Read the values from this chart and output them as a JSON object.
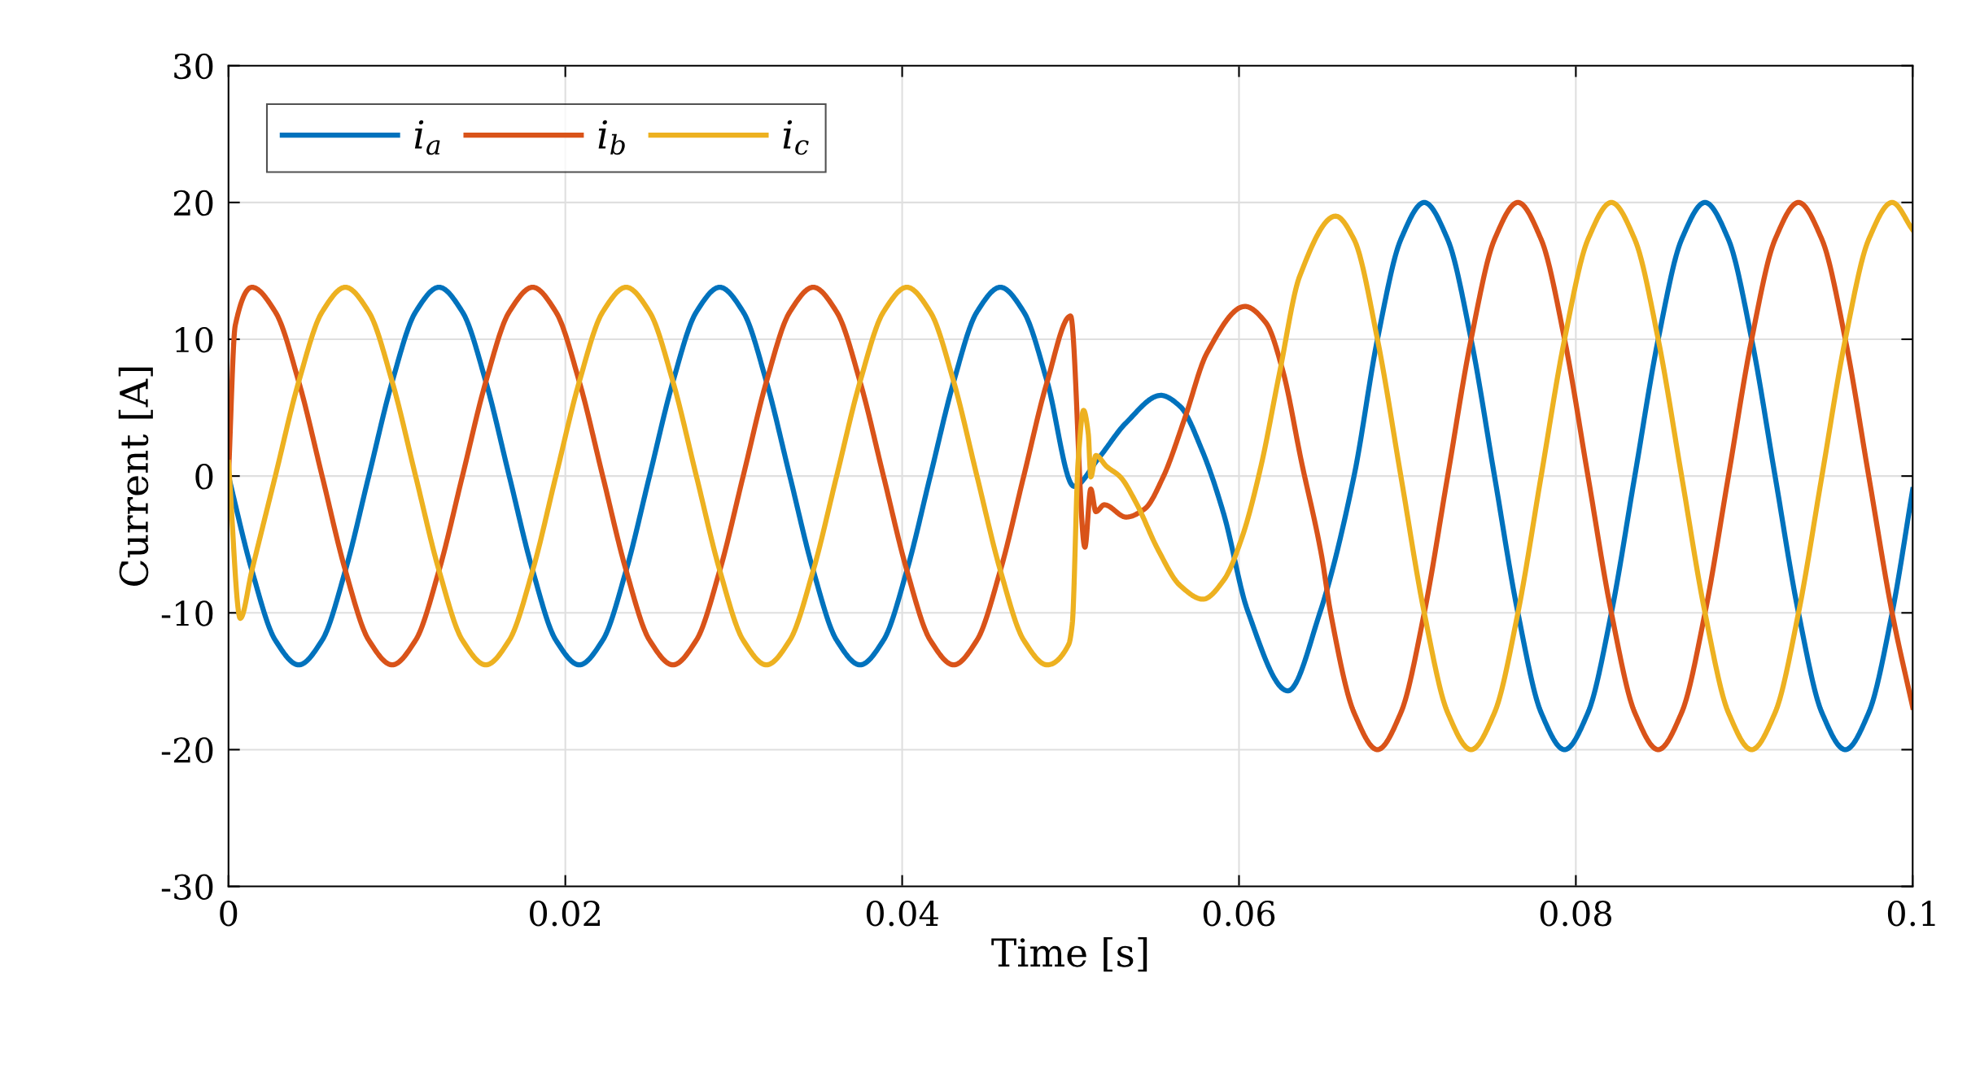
{
  "chart_data": {
    "type": "line",
    "xlabel": "Time [s]",
    "ylabel": "Current [A]",
    "xlim": [
      0,
      0.1
    ],
    "ylim": [
      -30,
      30
    ],
    "xticks": [
      0,
      0.02,
      0.04,
      0.06,
      0.08,
      0.1
    ],
    "yticks": [
      -30,
      -20,
      -10,
      0,
      10,
      20,
      30
    ],
    "grid": true,
    "legend": "top left",
    "series": [
      {
        "name": "i$_{a}$",
        "color": "#0072bd",
        "x": [
          0,
          0.00139,
          0.00278,
          0.00417,
          0.00556,
          0.00694,
          0.00833,
          0.00972,
          0.01111,
          0.0125,
          0.01389,
          0.01528,
          0.01667,
          0.01806,
          0.01944,
          0.02083,
          0.02222,
          0.02361,
          0.025,
          0.02639,
          0.02778,
          0.02917,
          0.03056,
          0.03194,
          0.03333,
          0.03472,
          0.03611,
          0.0375,
          0.03889,
          0.04028,
          0.04167,
          0.04306,
          0.04444,
          0.04583,
          0.04722,
          0.04861,
          0.0502,
          0.05166,
          0.0533,
          0.05536,
          0.0565,
          0.0578,
          0.0591,
          0.0605,
          0.0629,
          0.0648,
          0.06683,
          0.06822,
          0.06961,
          0.071,
          0.07239,
          0.07378,
          0.07517,
          0.07656,
          0.07794,
          0.07933,
          0.08072,
          0.08211,
          0.0835,
          0.08489,
          0.08628,
          0.08767,
          0.08906,
          0.09044,
          0.09183,
          0.09322,
          0.09461,
          0.096,
          0.09739,
          0.09878,
          0.1
        ],
        "values": [
          0,
          -6.9,
          -12,
          -13.8,
          -12,
          -6.9,
          0,
          6.9,
          12,
          13.8,
          12,
          6.9,
          0,
          -6.9,
          -12,
          -13.8,
          -12,
          -6.9,
          0,
          6.9,
          12,
          13.8,
          12,
          6.9,
          0,
          -6.9,
          -12,
          -13.8,
          -12,
          -6.9,
          0,
          6.9,
          12,
          13.8,
          12,
          6.9,
          -0.75,
          1.3,
          3.9,
          5.9,
          5.1,
          1.9,
          -2.8,
          -9.8,
          -15.7,
          -10,
          0,
          10,
          17.3,
          20,
          17.3,
          10,
          0,
          -10,
          -17.3,
          -20,
          -17.3,
          -10,
          0,
          10,
          17.3,
          20,
          17.3,
          10,
          0,
          -10,
          -17.3,
          -20,
          -17.3,
          -10,
          -1
        ]
      },
      {
        "name": "i$_{b}$",
        "color": "#d95319",
        "x": [
          0,
          0.0004,
          0.00139,
          0.00278,
          0.00417,
          0.00556,
          0.00694,
          0.00833,
          0.00972,
          0.01111,
          0.0125,
          0.01389,
          0.01528,
          0.01667,
          0.01806,
          0.01944,
          0.02083,
          0.02222,
          0.02361,
          0.025,
          0.02639,
          0.02778,
          0.02917,
          0.03056,
          0.03194,
          0.03333,
          0.03472,
          0.03611,
          0.0375,
          0.03889,
          0.04028,
          0.04167,
          0.04306,
          0.04444,
          0.04583,
          0.04722,
          0.04861,
          0.05,
          0.05085,
          0.0512,
          0.0515,
          0.052,
          0.0533,
          0.0544,
          0.0555,
          0.0568,
          0.0581,
          0.06035,
          0.0616,
          0.0626,
          0.0637,
          0.0649,
          0.06544,
          0.06683,
          0.06822,
          0.06961,
          0.071,
          0.07239,
          0.07378,
          0.07517,
          0.07656,
          0.07794,
          0.07933,
          0.08072,
          0.08211,
          0.0835,
          0.08489,
          0.08628,
          0.08767,
          0.08906,
          0.09044,
          0.09183,
          0.09322,
          0.09461,
          0.096,
          0.09739,
          0.09878,
          0.1
        ],
        "values": [
          0,
          11,
          13.8,
          12,
          6.9,
          0,
          -6.9,
          -12,
          -13.8,
          -12,
          -6.9,
          0,
          6.9,
          12,
          13.8,
          12,
          6.9,
          0,
          -6.9,
          -12,
          -13.8,
          -12,
          -6.9,
          0,
          6.9,
          12,
          13.8,
          12,
          6.9,
          0,
          -6.9,
          -12,
          -13.8,
          -12,
          -6.9,
          0,
          6.9,
          11.7,
          -5.2,
          -0.95,
          -2.6,
          -2.1,
          -3,
          -2.4,
          -0.06,
          4.3,
          9,
          12.4,
          11.2,
          7.7,
          1.1,
          -5.8,
          -10,
          -17.3,
          -20,
          -17.3,
          -10,
          0,
          10,
          17.3,
          20,
          17.3,
          10,
          0,
          -10,
          -17.3,
          -20,
          -17.3,
          -10,
          0,
          10,
          17.3,
          20,
          17.3,
          10,
          0,
          -10,
          -16.9
        ]
      },
      {
        "name": "i$_{c}$",
        "color": "#edb120",
        "x": [
          0,
          0.0007,
          0.00139,
          0.00278,
          0.00417,
          0.00556,
          0.00694,
          0.00833,
          0.00972,
          0.01111,
          0.0125,
          0.01389,
          0.01528,
          0.01667,
          0.01806,
          0.01944,
          0.02083,
          0.02222,
          0.02361,
          0.025,
          0.02639,
          0.02778,
          0.02917,
          0.03056,
          0.03194,
          0.03333,
          0.03472,
          0.03611,
          0.0375,
          0.03889,
          0.04028,
          0.04167,
          0.04306,
          0.04444,
          0.04583,
          0.04722,
          0.04861,
          0.04989,
          0.0501,
          0.05045,
          0.05077,
          0.05105,
          0.0512,
          0.0515,
          0.05214,
          0.05295,
          0.05391,
          0.0552,
          0.0565,
          0.05786,
          0.0591,
          0.0602,
          0.0613,
          0.0624,
          0.0636,
          0.06574,
          0.06683,
          0.06822,
          0.06961,
          0.071,
          0.07239,
          0.07378,
          0.07517,
          0.07656,
          0.07794,
          0.07933,
          0.08072,
          0.08211,
          0.0835,
          0.08489,
          0.08628,
          0.08767,
          0.08906,
          0.09044,
          0.09183,
          0.09322,
          0.09461,
          0.096,
          0.09739,
          0.09878,
          0.1
        ],
        "values": [
          1,
          -10.4,
          -6.9,
          0,
          6.9,
          12,
          13.8,
          12,
          6.9,
          0,
          -6.9,
          -12,
          -13.8,
          -12,
          -6.9,
          0,
          6.9,
          12,
          13.8,
          12,
          6.9,
          0,
          -6.9,
          -12,
          -13.8,
          -12,
          -6.9,
          0,
          6.9,
          12,
          13.8,
          12,
          6.9,
          0,
          -6.9,
          -12,
          -13.8,
          -12.3,
          -10.8,
          1.1,
          4.8,
          3.1,
          -0.06,
          1.5,
          0.7,
          -0.06,
          -2,
          -5.4,
          -8,
          -9,
          -7.6,
          -4.4,
          0.7,
          7.5,
          14.6,
          19,
          17.3,
          10,
          0,
          -10,
          -17.3,
          -20,
          -17.3,
          -10,
          0,
          10,
          17.3,
          20,
          17.3,
          10,
          0,
          -10,
          -17.3,
          -20,
          -17.3,
          -10,
          0,
          10,
          17.3,
          20,
          18
        ]
      }
    ]
  }
}
